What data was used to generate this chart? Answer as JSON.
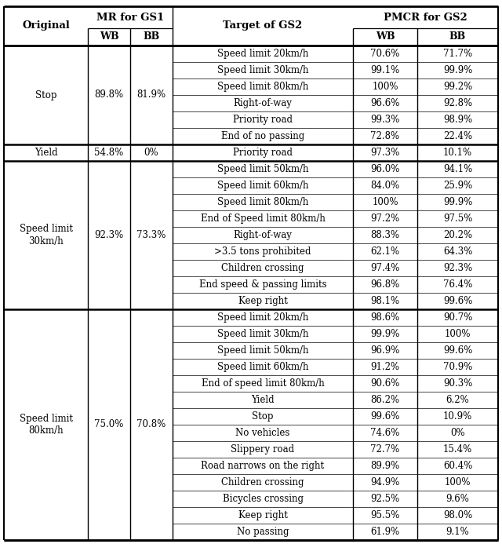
{
  "rows": [
    {
      "target": "Speed limit 20km/h",
      "pmcr_wb": "70.6%",
      "pmcr_bb": "71.7%"
    },
    {
      "target": "Speed limit 30km/h",
      "pmcr_wb": "99.1%",
      "pmcr_bb": "99.9%"
    },
    {
      "target": "Speed limit 80km/h",
      "pmcr_wb": "100%",
      "pmcr_bb": "99.2%"
    },
    {
      "target": "Right-of-way",
      "pmcr_wb": "96.6%",
      "pmcr_bb": "92.8%"
    },
    {
      "target": "Priority road",
      "pmcr_wb": "99.3%",
      "pmcr_bb": "98.9%"
    },
    {
      "target": "End of no passing",
      "pmcr_wb": "72.8%",
      "pmcr_bb": "22.4%"
    },
    {
      "target": "Priority road",
      "pmcr_wb": "97.3%",
      "pmcr_bb": "10.1%"
    },
    {
      "target": "Speed limit 50km/h",
      "pmcr_wb": "96.0%",
      "pmcr_bb": "94.1%"
    },
    {
      "target": "Speed limit 60km/h",
      "pmcr_wb": "84.0%",
      "pmcr_bb": "25.9%"
    },
    {
      "target": "Speed limit 80km/h",
      "pmcr_wb": "100%",
      "pmcr_bb": "99.9%"
    },
    {
      "target": "End of Speed limit 80km/h",
      "pmcr_wb": "97.2%",
      "pmcr_bb": "97.5%"
    },
    {
      "target": "Right-of-way",
      "pmcr_wb": "88.3%",
      "pmcr_bb": "20.2%"
    },
    {
      "target": ">3.5 tons prohibited",
      "pmcr_wb": "62.1%",
      "pmcr_bb": "64.3%"
    },
    {
      "target": "Children crossing",
      "pmcr_wb": "97.4%",
      "pmcr_bb": "92.3%"
    },
    {
      "target": "End speed & passing limits",
      "pmcr_wb": "96.8%",
      "pmcr_bb": "76.4%"
    },
    {
      "target": "Keep right",
      "pmcr_wb": "98.1%",
      "pmcr_bb": "99.6%"
    },
    {
      "target": "Speed limit 20km/h",
      "pmcr_wb": "98.6%",
      "pmcr_bb": "90.7%"
    },
    {
      "target": "Speed limit 30km/h",
      "pmcr_wb": "99.9%",
      "pmcr_bb": "100%"
    },
    {
      "target": "Speed limit 50km/h",
      "pmcr_wb": "96.9%",
      "pmcr_bb": "99.6%"
    },
    {
      "target": "Speed limit 60km/h",
      "pmcr_wb": "91.2%",
      "pmcr_bb": "70.9%"
    },
    {
      "target": "End of speed limit 80km/h",
      "pmcr_wb": "90.6%",
      "pmcr_bb": "90.3%"
    },
    {
      "target": "Yield",
      "pmcr_wb": "86.2%",
      "pmcr_bb": "6.2%"
    },
    {
      "target": "Stop",
      "pmcr_wb": "99.6%",
      "pmcr_bb": "10.9%"
    },
    {
      "target": "No vehicles",
      "pmcr_wb": "74.6%",
      "pmcr_bb": "0%"
    },
    {
      "target": "Slippery road",
      "pmcr_wb": "72.7%",
      "pmcr_bb": "15.4%"
    },
    {
      "target": "Road narrows on the right",
      "pmcr_wb": "89.9%",
      "pmcr_bb": "60.4%"
    },
    {
      "target": "Children crossing",
      "pmcr_wb": "94.9%",
      "pmcr_bb": "100%"
    },
    {
      "target": "Bicycles crossing",
      "pmcr_wb": "92.5%",
      "pmcr_bb": "9.6%"
    },
    {
      "target": "Keep right",
      "pmcr_wb": "95.5%",
      "pmcr_bb": "98.0%"
    },
    {
      "target": "No passing",
      "pmcr_wb": "61.9%",
      "pmcr_bb": "9.1%"
    }
  ],
  "sections": [
    {
      "label": "Stop",
      "mr_wb": "89.8%",
      "mr_bb": "81.9%",
      "start": 0,
      "end": 6
    },
    {
      "label": "Yield",
      "mr_wb": "54.8%",
      "mr_bb": "0%",
      "start": 6,
      "end": 7
    },
    {
      "label": "Speed limit\n30km/h",
      "mr_wb": "92.3%",
      "mr_bb": "73.3%",
      "start": 7,
      "end": 16
    },
    {
      "label": "Speed limit\n80km/h",
      "mr_wb": "75.0%",
      "mr_bb": "70.8%",
      "start": 16,
      "end": 30
    }
  ],
  "bg_color": "#ffffff",
  "text_color": "#000000",
  "bold_color": "#000000",
  "font_size": 8.5,
  "header_font_size": 9.5,
  "subheader_font_size": 9.0
}
